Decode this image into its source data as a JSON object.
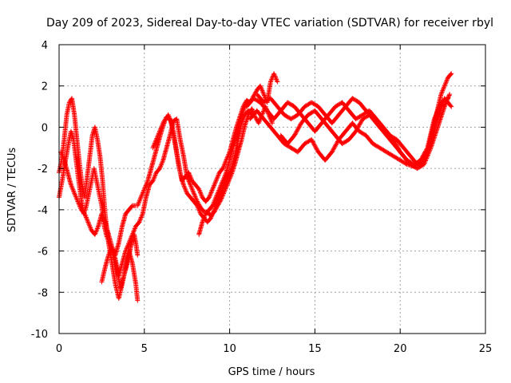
{
  "chart_data": {
    "type": "scatter",
    "title": "Day 209 of 2023, Sidereal Day-to-day VTEC variation (SDTVAR) for receiver rbyl",
    "xlabel": "GPS time / hours",
    "ylabel": "SDTVAR / TECUs",
    "xlim": [
      0,
      25
    ],
    "ylim": [
      -10,
      4
    ],
    "xticks": [
      0,
      5,
      10,
      15,
      20,
      25
    ],
    "yticks": [
      -10,
      -8,
      -6,
      -4,
      -2,
      0,
      2,
      4
    ],
    "grid": true,
    "marker": "+",
    "series": [
      {
        "name": "SDTVAR",
        "color": "#ff0000",
        "strands": [
          {
            "x": [
              0.0,
              0.2,
              0.4,
              0.55,
              0.7,
              0.85,
              1.0,
              1.15,
              1.3,
              1.45,
              1.6,
              1.75,
              1.9,
              2.05,
              2.2,
              2.35,
              2.5,
              2.65,
              2.8,
              3.0,
              3.2,
              3.4,
              3.6,
              3.8,
              4.0,
              4.2,
              4.4,
              4.5,
              4.6
            ],
            "y": [
              -3.4,
              -2.5,
              -1.5,
              -0.8,
              -0.2,
              -0.6,
              -1.6,
              -2.6,
              -3.5,
              -4.2,
              -3.8,
              -3.2,
              -2.6,
              -2.0,
              -2.6,
              -3.2,
              -3.8,
              -4.8,
              -5.3,
              -5.7,
              -6.3,
              -7.0,
              -7.8,
              -7.2,
              -6.6,
              -5.8,
              -5.2,
              -5.6,
              -6.2
            ]
          },
          {
            "x": [
              0.0,
              0.15,
              0.3,
              0.45,
              0.6,
              0.75,
              0.9,
              1.05,
              1.2,
              1.35,
              1.5,
              1.65,
              1.8,
              1.95,
              2.1,
              2.25,
              2.4,
              2.55,
              2.7,
              2.9,
              3.1,
              3.3,
              3.5,
              3.7,
              3.9,
              4.1,
              4.3,
              4.5,
              4.6
            ],
            "y": [
              -2.2,
              -1.6,
              -0.6,
              0.6,
              1.2,
              1.4,
              0.6,
              -0.6,
              -1.8,
              -2.8,
              -3.4,
              -2.4,
              -1.4,
              -0.4,
              0.0,
              -0.6,
              -1.4,
              -2.6,
              -4.2,
              -5.6,
              -6.6,
              -7.6,
              -8.3,
              -7.6,
              -6.8,
              -6.0,
              -6.6,
              -7.6,
              -8.4
            ]
          },
          {
            "x": [
              0.1,
              0.3,
              0.5,
              0.7,
              0.9,
              1.1,
              1.3,
              1.5,
              1.7,
              1.9,
              2.1,
              2.3,
              2.5,
              2.7,
              2.9,
              3.1,
              3.3,
              3.5,
              3.7,
              3.9,
              4.1,
              4.3,
              4.5
            ],
            "y": [
              -1.2,
              -1.6,
              -2.2,
              -2.8,
              -3.2,
              -3.6,
              -4.0,
              -4.2,
              -4.6,
              -5.0,
              -5.2,
              -4.8,
              -4.2,
              -4.6,
              -5.2,
              -5.8,
              -6.2,
              -5.6,
              -4.8,
              -4.2,
              -4.0,
              -3.8,
              -3.8
            ]
          },
          {
            "x": [
              2.5,
              2.7,
              2.9,
              3.1,
              3.3,
              3.5,
              3.7,
              3.9,
              4.1,
              4.3,
              4.5,
              4.7,
              4.9,
              5.1,
              5.3,
              5.5,
              5.7,
              5.9,
              6.1,
              6.3,
              6.5,
              6.7,
              6.9,
              7.1,
              7.3,
              7.5,
              7.7,
              7.9,
              8.1,
              8.3,
              8.5,
              8.7,
              8.9,
              9.1,
              9.3,
              9.5,
              9.7,
              9.9,
              10.1,
              10.3,
              10.5,
              10.7,
              10.9,
              11.1,
              11.3,
              11.5,
              11.7,
              11.9,
              12.1,
              12.3,
              12.5
            ],
            "y": [
              -7.5,
              -6.8,
              -6.2,
              -5.8,
              -6.4,
              -7.2,
              -6.6,
              -6.0,
              -5.6,
              -5.2,
              -4.8,
              -4.6,
              -4.2,
              -3.4,
              -2.8,
              -2.6,
              -2.2,
              -2.0,
              -1.6,
              -1.0,
              -0.4,
              0.3,
              0.4,
              -0.6,
              -1.4,
              -2.4,
              -2.8,
              -3.2,
              -3.6,
              -3.9,
              -4.1,
              -4.1,
              -4.3,
              -4.1,
              -3.8,
              -3.5,
              -3.1,
              -2.7,
              -2.3,
              -1.8,
              -1.2,
              -0.6,
              0.1,
              0.6,
              0.9,
              0.5,
              0.2,
              0.6,
              1.0,
              0.6,
              0.2
            ]
          },
          {
            "x": [
              4.6,
              4.8,
              5.0,
              5.2,
              5.4,
              5.6,
              5.8,
              6.0,
              6.2,
              6.4,
              6.6,
              6.8,
              7.0,
              7.2,
              7.4,
              7.6,
              7.8,
              8.0,
              8.2,
              8.4,
              8.6,
              8.8,
              9.0,
              9.2,
              9.4,
              9.6,
              9.8,
              10.0,
              10.2,
              10.4,
              10.6,
              10.8,
              11.0,
              11.2,
              11.4,
              11.6,
              11.8,
              12.0,
              12.2,
              12.4,
              12.6,
              12.8
            ],
            "y": [
              -3.8,
              -3.4,
              -3.0,
              -2.6,
              -2.0,
              -1.4,
              -0.8,
              -0.2,
              0.3,
              0.6,
              0.2,
              -0.8,
              -1.8,
              -2.6,
              -2.4,
              -2.2,
              -2.6,
              -2.8,
              -3.0,
              -3.4,
              -3.6,
              -3.4,
              -3.0,
              -2.6,
              -2.2,
              -2.0,
              -1.6,
              -1.2,
              -0.6,
              0.0,
              0.5,
              1.0,
              1.3,
              1.2,
              1.5,
              1.8,
              2.0,
              1.6,
              1.2,
              2.2,
              2.6,
              2.2
            ]
          },
          {
            "x": [
              5.5,
              5.7,
              5.9,
              6.1,
              6.3,
              6.5,
              6.7,
              6.9,
              7.1,
              7.3,
              7.5,
              7.7,
              7.9,
              8.1,
              8.3,
              8.5,
              8.7,
              8.9,
              9.1,
              9.3,
              9.5,
              9.7,
              9.9,
              10.1,
              10.3,
              10.5,
              10.7,
              10.9,
              11.1,
              11.3
            ],
            "y": [
              -1.0,
              -0.6,
              -0.2,
              0.2,
              0.5,
              0.4,
              -0.2,
              -1.2,
              -2.2,
              -2.8,
              -3.2,
              -3.4,
              -3.6,
              -3.8,
              -4.2,
              -4.4,
              -4.6,
              -4.4,
              -4.0,
              -3.6,
              -3.2,
              -2.8,
              -2.4,
              -2.0,
              -1.4,
              -0.6,
              0.2,
              0.6,
              0.8,
              0.6
            ]
          },
          {
            "x": [
              8.2,
              8.4,
              8.6,
              8.8,
              9.0,
              9.2,
              9.4,
              9.6,
              9.8,
              10.0,
              10.2,
              10.4,
              10.6,
              10.8,
              11.0
            ],
            "y": [
              -5.2,
              -4.6,
              -4.2,
              -4.0,
              -3.8,
              -3.4,
              -3.0,
              -2.6,
              -2.2,
              -1.6,
              -1.0,
              -0.4,
              0.2,
              0.8,
              1.2
            ]
          },
          {
            "x": [
              11.0,
              11.4,
              11.8,
              12.2,
              12.6,
              13.0,
              13.4,
              13.8,
              14.2,
              14.6,
              15.0,
              15.4,
              15.8,
              16.2,
              16.6,
              17.0,
              17.4,
              17.8,
              18.2,
              18.6,
              19.0,
              19.4,
              19.8,
              20.2,
              20.6,
              21.0,
              21.4,
              21.8,
              22.2,
              22.6,
              23.0
            ],
            "y": [
              1.0,
              1.4,
              1.2,
              0.8,
              0.4,
              0.8,
              1.2,
              1.0,
              0.6,
              0.2,
              -0.2,
              0.2,
              0.6,
              1.0,
              1.2,
              0.8,
              0.4,
              0.6,
              0.8,
              0.4,
              0.0,
              -0.4,
              -0.6,
              -1.0,
              -1.4,
              -1.8,
              -1.6,
              -0.8,
              0.4,
              1.4,
              1.0
            ]
          },
          {
            "x": [
              11.2,
              11.6,
              12.0,
              12.4,
              12.8,
              13.2,
              13.6,
              14.0,
              14.4,
              14.8,
              15.2,
              15.6,
              16.0,
              16.4,
              16.8,
              17.2,
              17.6,
              18.0,
              18.4,
              18.8,
              19.2,
              19.6,
              20.0,
              20.4,
              20.8,
              21.2,
              21.6,
              22.0,
              22.4,
              22.8,
              23.0
            ],
            "y": [
              0.4,
              0.8,
              0.4,
              0.0,
              -0.4,
              -0.8,
              -1.0,
              -1.2,
              -0.8,
              -0.6,
              -1.2,
              -1.6,
              -1.2,
              -0.6,
              -0.2,
              0.2,
              -0.2,
              -0.4,
              -0.8,
              -1.0,
              -1.2,
              -1.4,
              -1.6,
              -1.8,
              -1.9,
              -1.8,
              -1.2,
              0.2,
              1.6,
              2.4,
              2.6
            ]
          },
          {
            "x": [
              13.0,
              13.4,
              13.8,
              14.2,
              14.6,
              15.0,
              15.4,
              15.8,
              16.2,
              16.6,
              17.0,
              17.4,
              17.8,
              18.2,
              18.6,
              19.0,
              19.4,
              19.8,
              20.2,
              20.6,
              21.0,
              21.4,
              21.8,
              22.2,
              22.6,
              22.9
            ],
            "y": [
              -0.4,
              -0.8,
              -0.4,
              0.2,
              0.6,
              0.8,
              0.4,
              0.0,
              -0.4,
              -0.8,
              -0.6,
              -0.2,
              0.4,
              0.6,
              0.2,
              -0.2,
              -0.6,
              -1.0,
              -1.4,
              -1.8,
              -2.0,
              -1.8,
              -1.0,
              0.0,
              1.0,
              1.6
            ]
          },
          {
            "x": [
              11.6,
              12.0,
              12.4,
              12.8,
              13.2,
              13.6,
              14.0,
              14.4,
              14.8,
              15.2,
              15.6,
              16.0,
              16.4,
              16.8,
              17.2,
              17.6,
              18.0,
              18.4,
              18.8,
              19.2,
              19.6,
              20.0,
              20.4,
              20.8,
              21.2,
              21.6,
              22.0,
              22.4,
              22.8
            ],
            "y": [
              1.6,
              1.2,
              1.4,
              1.0,
              0.6,
              0.4,
              0.6,
              1.0,
              1.2,
              1.0,
              0.6,
              0.2,
              0.6,
              1.0,
              1.4,
              1.2,
              0.8,
              0.6,
              0.2,
              -0.2,
              -0.6,
              -1.2,
              -1.6,
              -1.8,
              -1.6,
              -1.0,
              0.4,
              1.2,
              1.4
            ]
          }
        ]
      }
    ]
  }
}
